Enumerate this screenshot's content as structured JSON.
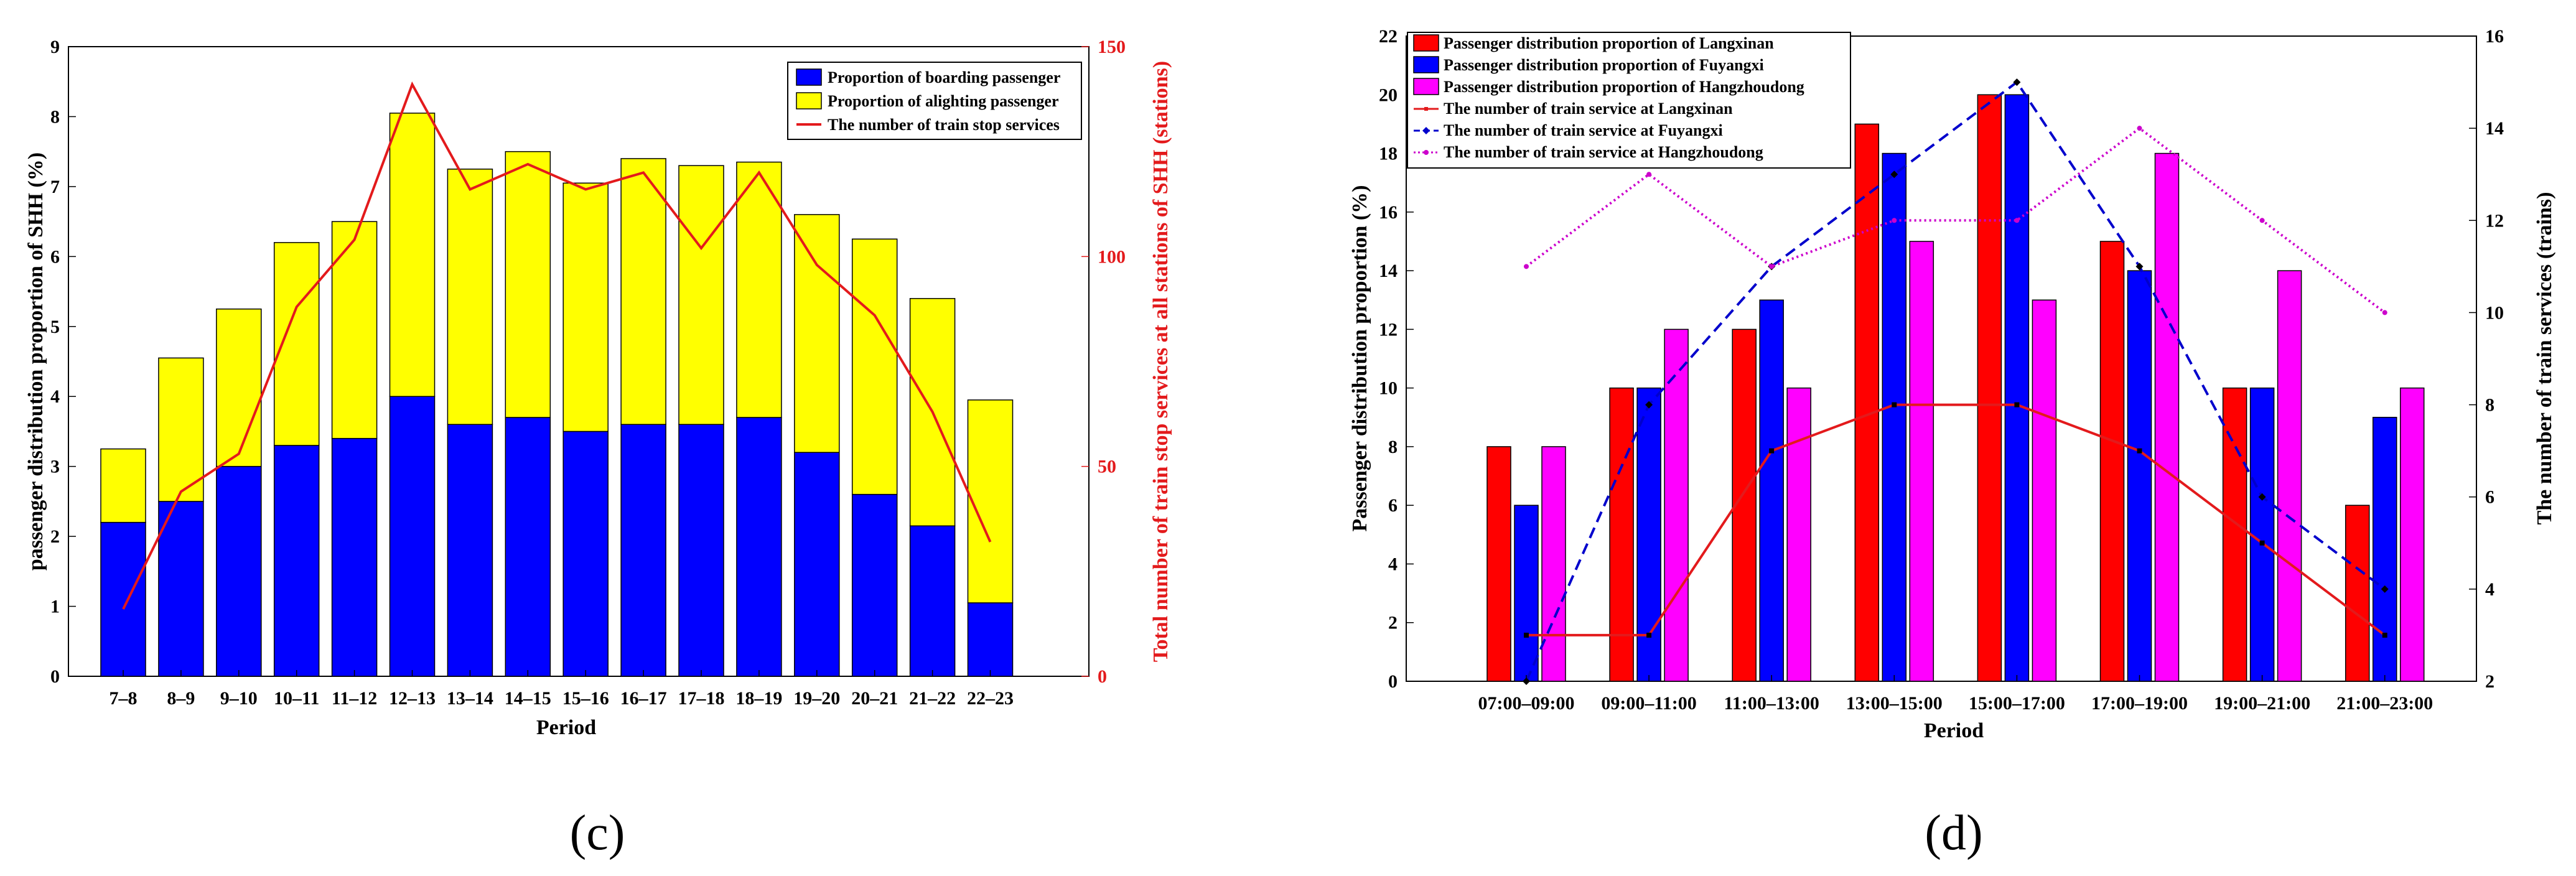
{
  "chart_data": [
    {
      "id": "c",
      "type": "bar",
      "stacked": true,
      "caption": "(c)",
      "categories": [
        "7–8",
        "8–9",
        "9–10",
        "10–11",
        "11–12",
        "12–13",
        "13–14",
        "14–15",
        "15–16",
        "16–17",
        "17–18",
        "18–19",
        "19–20",
        "20–21",
        "21–22",
        "22–23"
      ],
      "series": [
        {
          "name": "Proportion of boarding passenger",
          "color": "#0000FF",
          "values": [
            2.2,
            2.5,
            3.0,
            3.3,
            3.4,
            4.0,
            3.6,
            3.7,
            3.5,
            3.6,
            3.6,
            3.7,
            3.2,
            2.6,
            2.15,
            1.05
          ]
        },
        {
          "name": "Proportion of alighting passenger",
          "color": "#FFFF00",
          "values": [
            1.05,
            2.05,
            2.25,
            2.9,
            3.1,
            4.05,
            3.65,
            3.8,
            3.55,
            3.8,
            3.7,
            3.65,
            3.4,
            3.65,
            3.25,
            2.9
          ]
        },
        {
          "name": "The number of train stop services",
          "color": "#E31A1C",
          "axis": "right",
          "kind": "line",
          "values": [
            16,
            44,
            53,
            88,
            104,
            141,
            116,
            122,
            116,
            120,
            102,
            120,
            98,
            86,
            63,
            32
          ]
        }
      ],
      "xlabel": "Period",
      "ylabel": "passenger distribution proportion of SHH (%)",
      "ylabel_right": "Total number of train stop services at all stations of SHH (stations)",
      "ylim": [
        0,
        9
      ],
      "yticks": [
        0,
        1,
        2,
        3,
        4,
        5,
        6,
        7,
        8,
        9
      ],
      "ylim_right": [
        0,
        150
      ],
      "yticks_right": [
        0,
        50,
        100,
        150
      ],
      "legend": "top-right"
    },
    {
      "id": "d",
      "type": "bar",
      "grouped": true,
      "caption": "(d)",
      "categories": [
        "07:00–09:00",
        "09:00–11:00",
        "11:00–13:00",
        "13:00–15:00",
        "15:00–17:00",
        "17:00–19:00",
        "19:00–21:00",
        "21:00–23:00"
      ],
      "series": [
        {
          "name": "Passenger distribution proportion of Langxinan",
          "color": "#FF0000",
          "values": [
            8,
            10,
            12,
            19,
            20,
            15,
            10,
            6
          ]
        },
        {
          "name": "Passenger distribution proportion of Fuyangxi",
          "color": "#0000FF",
          "values": [
            6,
            10,
            13,
            18,
            20,
            14,
            10,
            9
          ]
        },
        {
          "name": "Passenger distribution proportion of Hangzhoudong",
          "color": "#FF00FF",
          "values": [
            8,
            12,
            10,
            15,
            13,
            18,
            14,
            10
          ]
        },
        {
          "name": "The number of train service at Langxinan",
          "color": "#E31A1C",
          "axis": "right",
          "kind": "line",
          "style": "solid",
          "marker": "square",
          "values": [
            3,
            3,
            7,
            8,
            8,
            7,
            5,
            3
          ]
        },
        {
          "name": "The number of train service at Fuyangxi",
          "color": "#0000CC",
          "axis": "right",
          "kind": "line",
          "style": "dashed",
          "marker": "diamond",
          "values": [
            2,
            8,
            11,
            13,
            15,
            11,
            6,
            4
          ]
        },
        {
          "name": "The number of train service at  Hangzhoudong",
          "color": "#CC00CC",
          "axis": "right",
          "kind": "line",
          "style": "dotted",
          "marker": "dot",
          "values": [
            11,
            13,
            11,
            12,
            12,
            14,
            12,
            10
          ]
        }
      ],
      "xlabel": "Period",
      "ylabel": "Passenger distribution proportion (%)",
      "ylabel_right": "The number of train services (trains)",
      "ylim": [
        0,
        22
      ],
      "yticks": [
        0,
        2,
        4,
        6,
        8,
        10,
        12,
        14,
        16,
        18,
        20,
        22
      ],
      "ylim_right": [
        2,
        16
      ],
      "yticks_right": [
        2,
        4,
        6,
        8,
        10,
        12,
        14,
        16
      ],
      "legend": "top-left"
    }
  ]
}
